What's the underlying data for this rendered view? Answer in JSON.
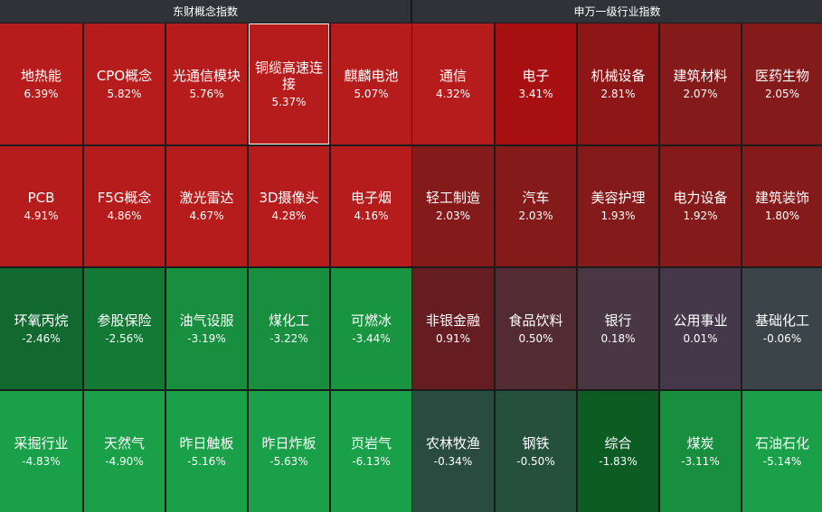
{
  "panels": {
    "left": {
      "title": "东财概念指数",
      "tiles": [
        {
          "name": "地热能",
          "change": "6.39%",
          "color": "#b71c1c"
        },
        {
          "name": "CPO概念",
          "change": "5.82%",
          "color": "#b71c1c"
        },
        {
          "name": "光通信模块",
          "change": "5.76%",
          "color": "#b71c1c"
        },
        {
          "name": "铜缆高速连接",
          "change": "5.37%",
          "color": "#b71c1c",
          "selected": true
        },
        {
          "name": "麒麟电池",
          "change": "5.07%",
          "color": "#b71c1c"
        },
        {
          "name": "PCB",
          "change": "4.91%",
          "color": "#b71c1c"
        },
        {
          "name": "F5G概念",
          "change": "4.86%",
          "color": "#b71c1c"
        },
        {
          "name": "激光雷达",
          "change": "4.67%",
          "color": "#b71c1c"
        },
        {
          "name": "3D摄像头",
          "change": "4.28%",
          "color": "#b71c1c"
        },
        {
          "name": "电子烟",
          "change": "4.16%",
          "color": "#b71c1c"
        },
        {
          "name": "环氧丙烷",
          "change": "-2.46%",
          "color": "#11692f"
        },
        {
          "name": "参股保险",
          "change": "-2.56%",
          "color": "#127a35"
        },
        {
          "name": "油气设服",
          "change": "-3.19%",
          "color": "#178f3f"
        },
        {
          "name": "煤化工",
          "change": "-3.22%",
          "color": "#178f3f"
        },
        {
          "name": "可燃冰",
          "change": "-3.44%",
          "color": "#199441"
        },
        {
          "name": "采掘行业",
          "change": "-4.83%",
          "color": "#1aa048"
        },
        {
          "name": "天然气",
          "change": "-4.90%",
          "color": "#1aa048"
        },
        {
          "name": "昨日触板",
          "change": "-5.16%",
          "color": "#1aa048"
        },
        {
          "name": "昨日炸板",
          "change": "-5.63%",
          "color": "#1aa048"
        },
        {
          "name": "页岩气",
          "change": "-6.13%",
          "color": "#1aa048"
        }
      ]
    },
    "right": {
      "title": "申万一级行业指数",
      "tiles": [
        {
          "name": "通信",
          "change": "4.32%",
          "color": "#b71c1c"
        },
        {
          "name": "电子",
          "change": "3.41%",
          "color": "#a80f10"
        },
        {
          "name": "机械设备",
          "change": "2.81%",
          "color": "#8e1616"
        },
        {
          "name": "建筑材料",
          "change": "2.07%",
          "color": "#841a1a"
        },
        {
          "name": "医药生物",
          "change": "2.05%",
          "color": "#841a1a"
        },
        {
          "name": "轻工制造",
          "change": "2.03%",
          "color": "#841a1a"
        },
        {
          "name": "汽车",
          "change": "2.03%",
          "color": "#841a1a"
        },
        {
          "name": "美容护理",
          "change": "1.93%",
          "color": "#841a1a"
        },
        {
          "name": "电力设备",
          "change": "1.92%",
          "color": "#841a1a"
        },
        {
          "name": "建筑装饰",
          "change": "1.80%",
          "color": "#841a1a"
        },
        {
          "name": "非银金融",
          "change": "0.91%",
          "color": "#651d22"
        },
        {
          "name": "食品饮料",
          "change": "0.50%",
          "color": "#522b33"
        },
        {
          "name": "银行",
          "change": "0.18%",
          "color": "#4a3744"
        },
        {
          "name": "公用事业",
          "change": "0.01%",
          "color": "#44384a"
        },
        {
          "name": "基础化工",
          "change": "-0.06%",
          "color": "#3a4449"
        },
        {
          "name": "农林牧渔",
          "change": "-0.34%",
          "color": "#2a4c40"
        },
        {
          "name": "钢铁",
          "change": "-0.50%",
          "color": "#25503b"
        },
        {
          "name": "综合",
          "change": "-1.83%",
          "color": "#0c5c24"
        },
        {
          "name": "煤炭",
          "change": "-3.11%",
          "color": "#178f3f"
        },
        {
          "name": "石油石化",
          "change": "-5.14%",
          "color": "#1aa048"
        }
      ]
    }
  }
}
